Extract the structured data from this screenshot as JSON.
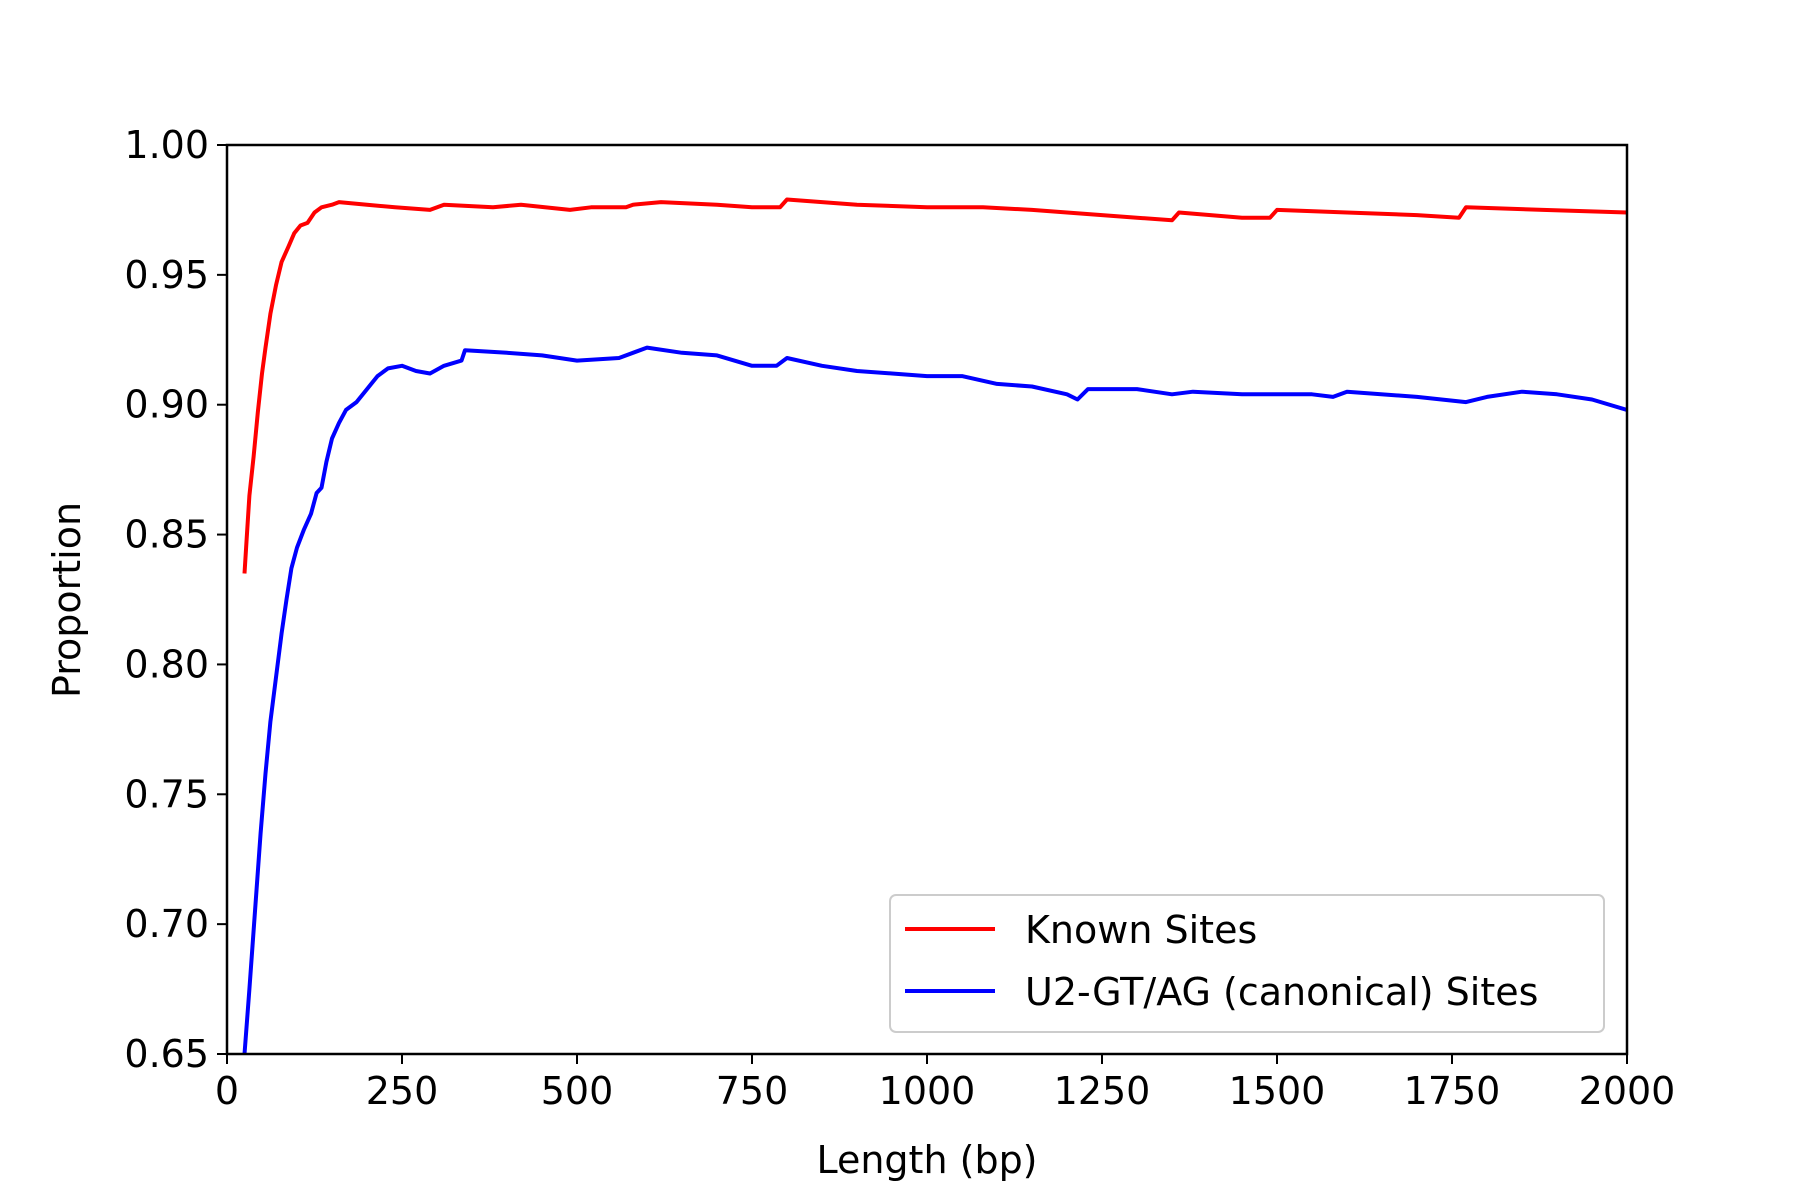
{
  "chart_data": {
    "type": "line",
    "xlabel": "Length (bp)",
    "ylabel": "Proportion",
    "xlim": [
      0,
      2000
    ],
    "ylim": [
      0.65,
      1.0
    ],
    "xticks": [
      0,
      250,
      500,
      750,
      1000,
      1250,
      1500,
      1750,
      2000
    ],
    "xtick_labels": [
      "0",
      "250",
      "500",
      "750",
      "1000",
      "1250",
      "1500",
      "1750",
      "2000"
    ],
    "yticks": [
      0.65,
      0.7,
      0.75,
      0.8,
      0.85,
      0.9,
      0.95,
      1.0
    ],
    "ytick_labels": [
      "0.65",
      "0.70",
      "0.75",
      "0.80",
      "0.85",
      "0.90",
      "0.95",
      "1.00"
    ],
    "grid": false,
    "legend": {
      "placement": "lower-right"
    },
    "series": [
      {
        "name": "Known Sites",
        "color": "#ff0000",
        "points": [
          [
            25,
            0.835
          ],
          [
            28,
            0.848
          ],
          [
            32,
            0.865
          ],
          [
            38,
            0.88
          ],
          [
            44,
            0.897
          ],
          [
            50,
            0.912
          ],
          [
            55,
            0.922
          ],
          [
            62,
            0.935
          ],
          [
            70,
            0.946
          ],
          [
            78,
            0.955
          ],
          [
            88,
            0.961
          ],
          [
            96,
            0.966
          ],
          [
            105,
            0.969
          ],
          [
            115,
            0.97
          ],
          [
            125,
            0.974
          ],
          [
            135,
            0.976
          ],
          [
            150,
            0.977
          ],
          [
            160,
            0.978
          ],
          [
            200,
            0.977
          ],
          [
            240,
            0.976
          ],
          [
            290,
            0.975
          ],
          [
            310,
            0.977
          ],
          [
            380,
            0.976
          ],
          [
            420,
            0.977
          ],
          [
            490,
            0.975
          ],
          [
            520,
            0.976
          ],
          [
            570,
            0.976
          ],
          [
            580,
            0.977
          ],
          [
            620,
            0.978
          ],
          [
            700,
            0.977
          ],
          [
            750,
            0.976
          ],
          [
            790,
            0.976
          ],
          [
            800,
            0.979
          ],
          [
            900,
            0.977
          ],
          [
            1000,
            0.976
          ],
          [
            1080,
            0.976
          ],
          [
            1150,
            0.975
          ],
          [
            1250,
            0.973
          ],
          [
            1300,
            0.972
          ],
          [
            1350,
            0.971
          ],
          [
            1360,
            0.974
          ],
          [
            1450,
            0.972
          ],
          [
            1490,
            0.972
          ],
          [
            1500,
            0.975
          ],
          [
            1600,
            0.974
          ],
          [
            1700,
            0.973
          ],
          [
            1760,
            0.972
          ],
          [
            1770,
            0.976
          ],
          [
            1880,
            0.975
          ],
          [
            2000,
            0.974
          ]
        ]
      },
      {
        "name": "U2-GT/AG (canonical) Sites",
        "color": "#0000ff",
        "points": [
          [
            25,
            0.65
          ],
          [
            32,
            0.675
          ],
          [
            40,
            0.705
          ],
          [
            48,
            0.735
          ],
          [
            55,
            0.758
          ],
          [
            62,
            0.778
          ],
          [
            70,
            0.795
          ],
          [
            78,
            0.812
          ],
          [
            85,
            0.825
          ],
          [
            92,
            0.837
          ],
          [
            100,
            0.845
          ],
          [
            110,
            0.852
          ],
          [
            120,
            0.858
          ],
          [
            128,
            0.866
          ],
          [
            135,
            0.868
          ],
          [
            142,
            0.878
          ],
          [
            150,
            0.887
          ],
          [
            160,
            0.893
          ],
          [
            170,
            0.898
          ],
          [
            185,
            0.901
          ],
          [
            200,
            0.906
          ],
          [
            215,
            0.911
          ],
          [
            230,
            0.914
          ],
          [
            250,
            0.915
          ],
          [
            270,
            0.913
          ],
          [
            290,
            0.912
          ],
          [
            310,
            0.915
          ],
          [
            335,
            0.917
          ],
          [
            340,
            0.921
          ],
          [
            400,
            0.92
          ],
          [
            450,
            0.919
          ],
          [
            500,
            0.917
          ],
          [
            560,
            0.918
          ],
          [
            600,
            0.922
          ],
          [
            650,
            0.92
          ],
          [
            700,
            0.919
          ],
          [
            750,
            0.915
          ],
          [
            785,
            0.915
          ],
          [
            800,
            0.918
          ],
          [
            850,
            0.915
          ],
          [
            900,
            0.913
          ],
          [
            950,
            0.912
          ],
          [
            1000,
            0.911
          ],
          [
            1050,
            0.911
          ],
          [
            1100,
            0.908
          ],
          [
            1150,
            0.907
          ],
          [
            1200,
            0.904
          ],
          [
            1215,
            0.902
          ],
          [
            1230,
            0.906
          ],
          [
            1300,
            0.906
          ],
          [
            1350,
            0.904
          ],
          [
            1380,
            0.905
          ],
          [
            1450,
            0.904
          ],
          [
            1500,
            0.904
          ],
          [
            1550,
            0.904
          ],
          [
            1580,
            0.903
          ],
          [
            1600,
            0.905
          ],
          [
            1700,
            0.903
          ],
          [
            1770,
            0.901
          ],
          [
            1800,
            0.903
          ],
          [
            1850,
            0.905
          ],
          [
            1900,
            0.904
          ],
          [
            1950,
            0.902
          ],
          [
            2000,
            0.898
          ]
        ]
      }
    ]
  }
}
